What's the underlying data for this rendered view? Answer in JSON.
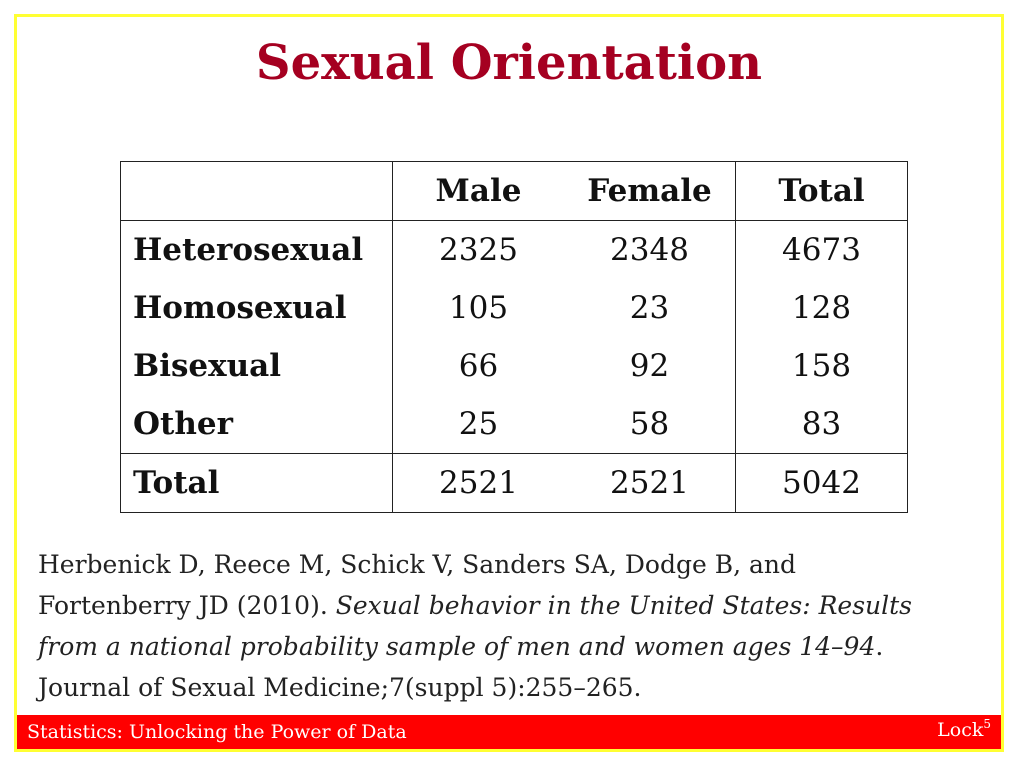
{
  "title": "Sexual Orientation",
  "table": {
    "headers": [
      "",
      "Male",
      "Female",
      "Total"
    ],
    "rows": [
      {
        "label": "Heterosexual",
        "male": "2325",
        "female": "2348",
        "total": "4673"
      },
      {
        "label": "Homosexual",
        "male": "105",
        "female": "23",
        "total": "128"
      },
      {
        "label": "Bisexual",
        "male": "66",
        "female": "92",
        "total": "158"
      },
      {
        "label": "Other",
        "male": "25",
        "female": "58",
        "total": "83"
      }
    ],
    "total_row": {
      "label": "Total",
      "male": "2521",
      "female": "2521",
      "total": "5042"
    }
  },
  "citation": {
    "authors": "Herbenick D, Reece M, Schick V, Sanders SA, Dodge B, and Fortenberry JD (2010). ",
    "article_title": "Sexual behavior in the United States: Results from a national probability sample of men and women ages 14–94",
    "journal": ". Journal of Sexual Medicine;7(suppl 5):255–265."
  },
  "footer": {
    "left": "Statistics: Unlocking the Power of Data",
    "right": "Lock",
    "right_superscript": "5"
  },
  "colors": {
    "title": "#a50021",
    "footer_bg": "#ff0000",
    "slide_border": "#ffff33"
  }
}
